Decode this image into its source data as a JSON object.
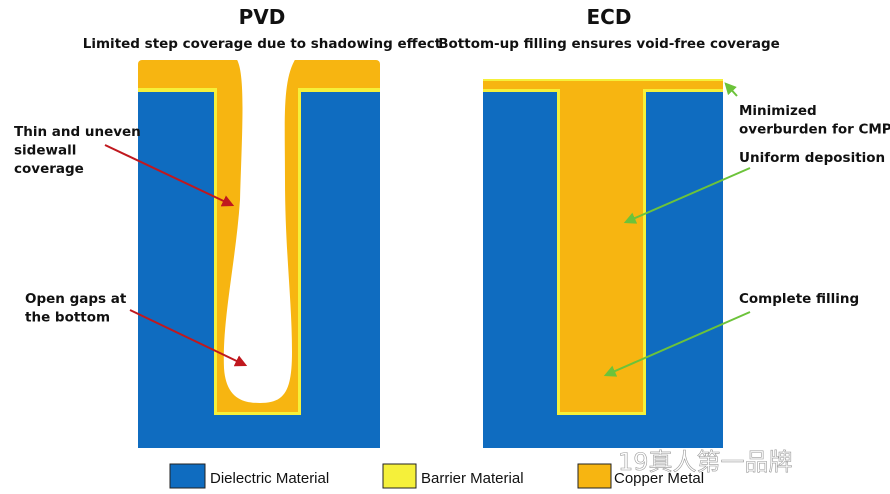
{
  "panels": [
    {
      "title": "PVD",
      "subtitle": "Limited step coverage due to shadowing effect",
      "annotations": [
        {
          "lines": [
            "Thin and uneven",
            "sidewall",
            "coverage"
          ]
        },
        {
          "lines": [
            "Open gaps at",
            "the bottom"
          ]
        }
      ]
    },
    {
      "title": "ECD",
      "subtitle": "Bottom-up filling ensures void-free coverage",
      "annotations": [
        {
          "lines": [
            "Minimized",
            "overburden for CMP"
          ]
        },
        {
          "lines": [
            "Uniform deposition"
          ]
        },
        {
          "lines": [
            "Complete filling"
          ]
        }
      ]
    }
  ],
  "legend": [
    {
      "label": "Dielectric Material"
    },
    {
      "label": "Barrier Material"
    },
    {
      "label": "Copper Metal"
    }
  ],
  "watermark": "19真人第一品牌"
}
